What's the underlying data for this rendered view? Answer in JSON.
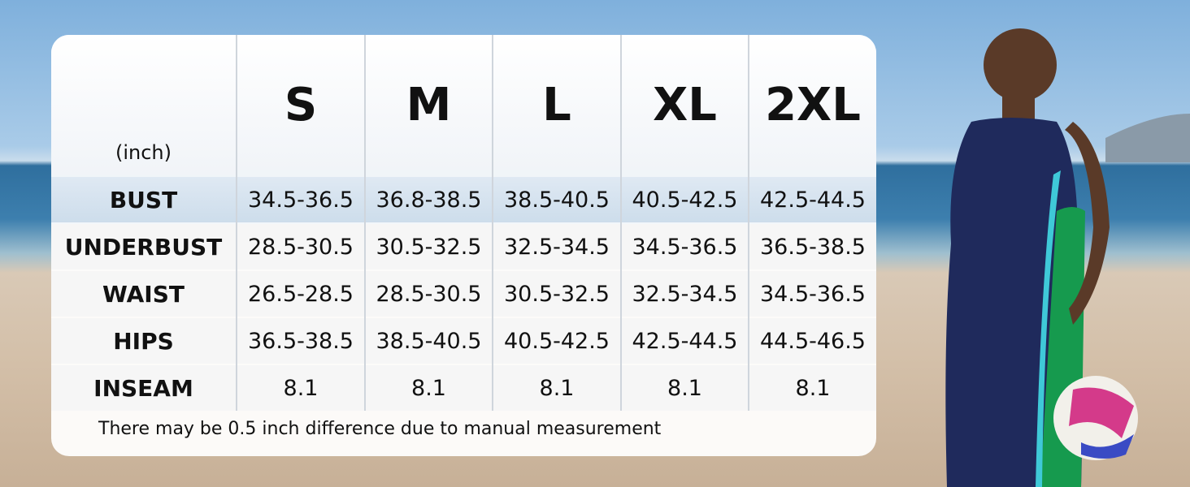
{
  "table": {
    "unit": "(inch)",
    "sizes": [
      "S",
      "M",
      "L",
      "XL",
      "2XL"
    ],
    "rows": [
      {
        "label": "BUST",
        "values": [
          "34.5-36.5",
          "36.8-38.5",
          "38.5-40.5",
          "40.5-42.5",
          "42.5-44.5"
        ]
      },
      {
        "label": "UNDERBUST",
        "values": [
          "28.5-30.5",
          "30.5-32.5",
          "32.5-34.5",
          "34.5-36.5",
          "36.5-38.5"
        ]
      },
      {
        "label": "WAIST",
        "values": [
          "26.5-28.5",
          "28.5-30.5",
          "30.5-32.5",
          "32.5-34.5",
          "34.5-36.5"
        ]
      },
      {
        "label": "HIPS",
        "values": [
          "36.5-38.5",
          "38.5-40.5",
          "40.5-42.5",
          "42.5-44.5",
          "44.5-46.5"
        ]
      },
      {
        "label": "INSEAM",
        "values": [
          "8.1",
          "8.1",
          "8.1",
          "8.1",
          "8.1"
        ]
      }
    ],
    "note": "There may be 0.5 inch difference due to manual measurement"
  }
}
